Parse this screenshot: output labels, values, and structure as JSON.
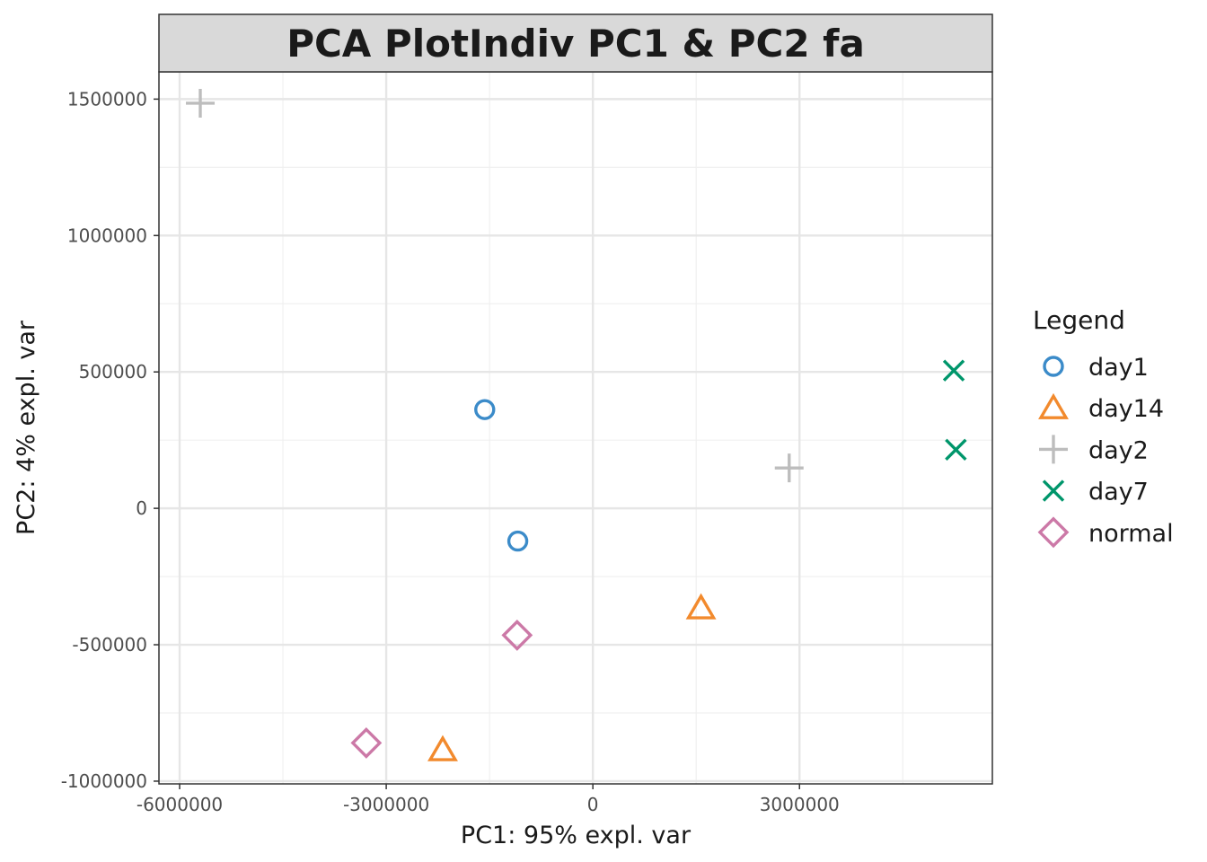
{
  "chart_data": {
    "type": "scatter",
    "title": "PCA PlotIndiv PC1 & PC2 fa",
    "xlabel": "PC1: 95% expl. var",
    "ylabel": "PC2: 4% expl. var",
    "xlim": [
      -6300000,
      5800000
    ],
    "ylim": [
      -1010000,
      1600000
    ],
    "x_ticks": [
      -6000000,
      -3000000,
      0,
      3000000
    ],
    "x_tick_labels": [
      "-6000000",
      "-3000000",
      "0",
      "3000000"
    ],
    "y_ticks": [
      -1000000,
      -500000,
      0,
      500000,
      1000000,
      1500000
    ],
    "y_tick_labels": [
      "-1000000",
      "-500000",
      "0",
      "500000",
      "1000000",
      "1500000"
    ],
    "grid": true,
    "legend_title": "Legend",
    "legend_position": "right",
    "series": [
      {
        "name": "day1",
        "shape": "circle",
        "color": "#3b8bc9",
        "points": [
          {
            "x": -1570000,
            "y": 362000
          },
          {
            "x": -1090000,
            "y": -120000
          }
        ]
      },
      {
        "name": "day14",
        "shape": "triangle",
        "color": "#f28a2d",
        "points": [
          {
            "x": 1570000,
            "y": -365000
          },
          {
            "x": -2180000,
            "y": -885000
          }
        ]
      },
      {
        "name": "day2",
        "shape": "plus",
        "color": "#bdbdbd",
        "points": [
          {
            "x": -5700000,
            "y": 1485000
          },
          {
            "x": 2850000,
            "y": 148000
          }
        ]
      },
      {
        "name": "day7",
        "shape": "cross",
        "color": "#00966b",
        "points": [
          {
            "x": 5240000,
            "y": 505000
          },
          {
            "x": 5270000,
            "y": 215000
          }
        ]
      },
      {
        "name": "normal",
        "shape": "diamond",
        "color": "#cc79a7",
        "points": [
          {
            "x": -1100000,
            "y": -465000
          },
          {
            "x": -3290000,
            "y": -860000
          }
        ]
      }
    ]
  }
}
